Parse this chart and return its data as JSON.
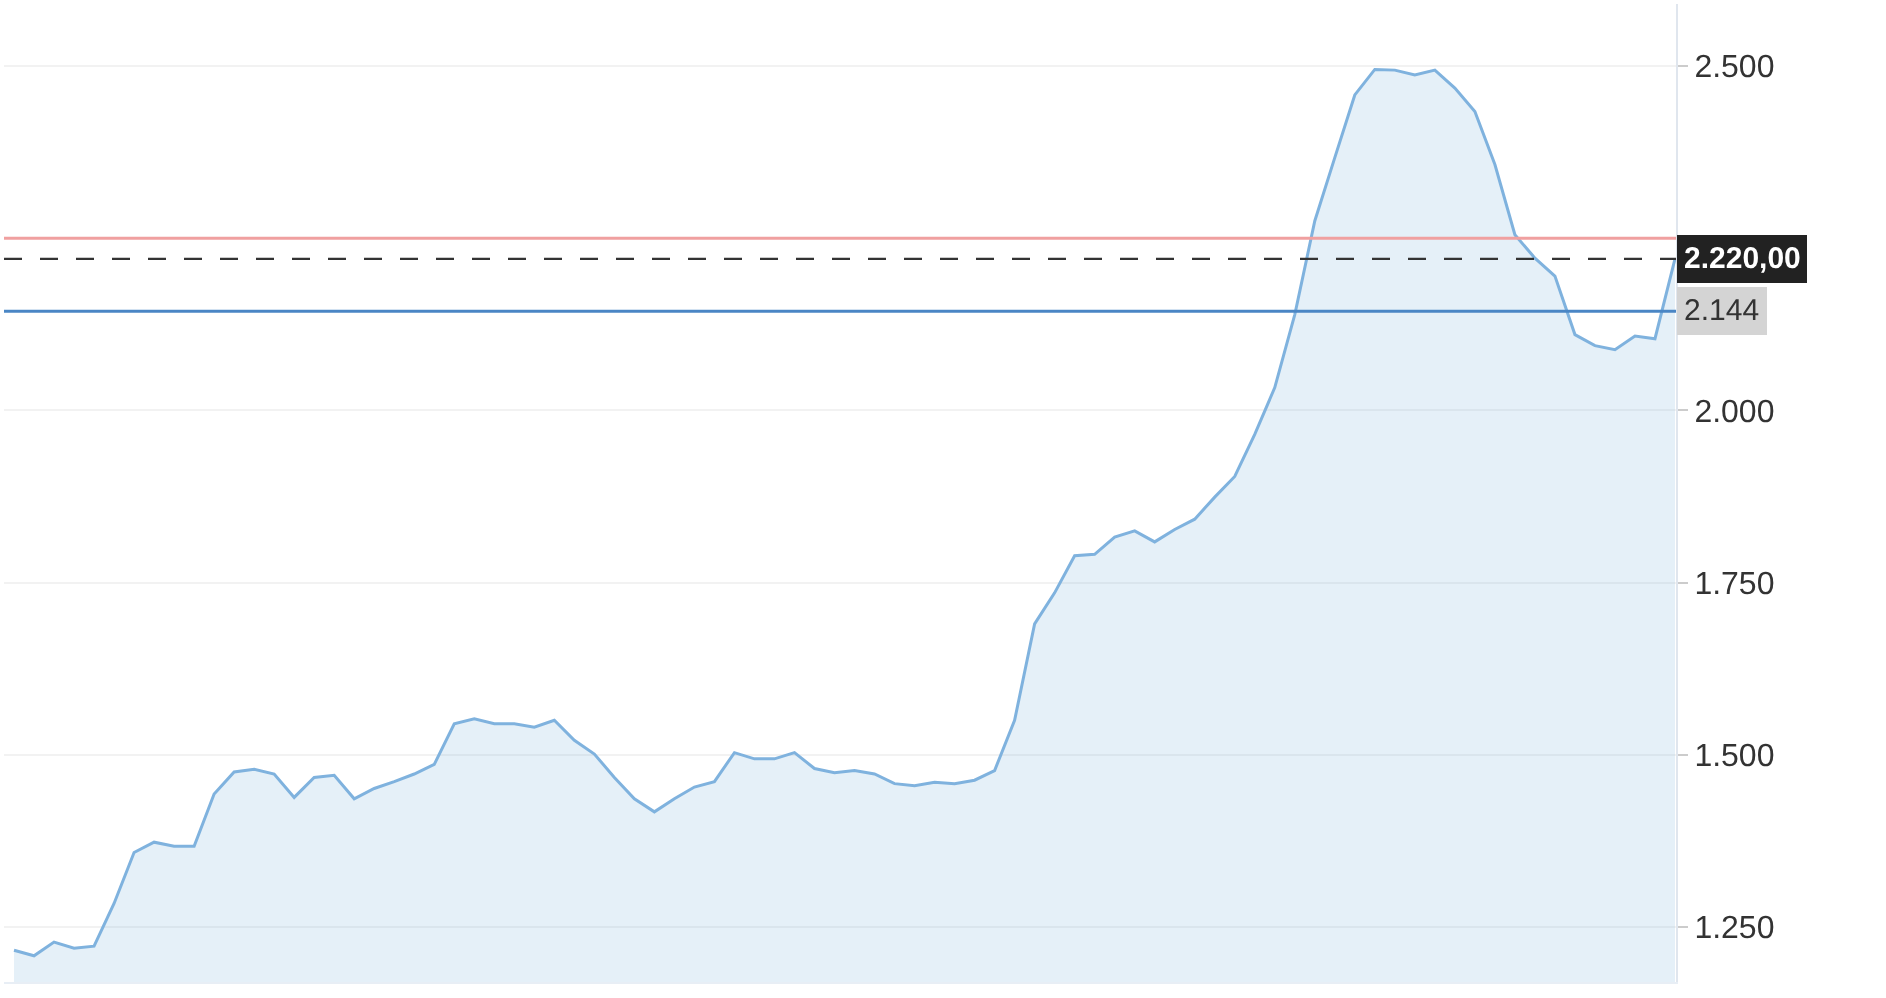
{
  "chart_data": {
    "type": "area",
    "categories": [
      null,
      null,
      null,
      null,
      null,
      null,
      null,
      null,
      null,
      null,
      null,
      null,
      null,
      null,
      null,
      null,
      null,
      null,
      null,
      null,
      null,
      null,
      null,
      null,
      null,
      null,
      null,
      null,
      null,
      null,
      null,
      null,
      null,
      null,
      null,
      null,
      null,
      null,
      null,
      null,
      null,
      null,
      null,
      null,
      null,
      null,
      null,
      null,
      null,
      null,
      null,
      null,
      null,
      null,
      null,
      null,
      null,
      null,
      null,
      null,
      null,
      null,
      null,
      null,
      null,
      null,
      null,
      null,
      null,
      null,
      null,
      null,
      null,
      null,
      null,
      null,
      null,
      null,
      null,
      null,
      null,
      null,
      null,
      null
    ],
    "series": [
      {
        "color": "#7fb2de",
        "values": [
          1.216,
          1.208,
          1.228,
          1.219,
          1.222,
          1.284,
          1.358,
          1.373,
          1.367,
          1.367,
          1.443,
          1.475,
          1.479,
          1.472,
          1.438,
          1.467,
          1.47,
          1.436,
          1.451,
          1.461,
          1.472,
          1.486,
          1.545,
          1.552,
          1.545,
          1.545,
          1.54,
          1.55,
          1.521,
          1.501,
          1.467,
          1.436,
          1.417,
          1.436,
          1.453,
          1.461,
          1.503,
          1.494,
          1.494,
          1.503,
          1.48,
          1.474,
          1.477,
          1.472,
          1.458,
          1.455,
          1.46,
          1.458,
          1.463,
          1.477,
          1.55,
          1.69,
          1.735,
          1.789,
          1.791,
          1.816,
          1.825,
          1.809,
          1.827,
          1.842,
          1.874,
          1.904,
          1.965,
          2.033,
          2.139,
          2.275,
          2.367,
          2.458,
          2.495,
          2.494,
          2.487,
          2.494,
          2.468,
          2.434,
          2.357,
          2.255,
          2.221,
          2.195,
          2.11,
          2.094,
          2.088,
          2.108,
          2.104,
          2.22
        ]
      }
    ],
    "ylim": [
      1.17,
      2.59
    ],
    "yticks": [
      {
        "value": 1.25,
        "label": "1.250"
      },
      {
        "value": 1.5,
        "label": "1.500"
      },
      {
        "value": 1.75,
        "label": "1.750"
      },
      {
        "value": 2,
        "label": "2.000"
      },
      {
        "value": 2.25,
        "label": null
      },
      {
        "value": 2.5,
        "label": "2.500"
      }
    ],
    "ref_lines": [
      {
        "axis": "y",
        "value": 2.25,
        "color": "#f0a0a0",
        "line_style": "solid"
      },
      {
        "axis": "y",
        "value": 2.22,
        "label": "2.220,00",
        "color": "#333333",
        "line_style": "dashed"
      },
      {
        "axis": "y",
        "value": 2.144,
        "label": "2.144",
        "color": "#4a86c5",
        "line_style": "solid"
      }
    ],
    "grid": "y",
    "tick_labels": "y"
  }
}
